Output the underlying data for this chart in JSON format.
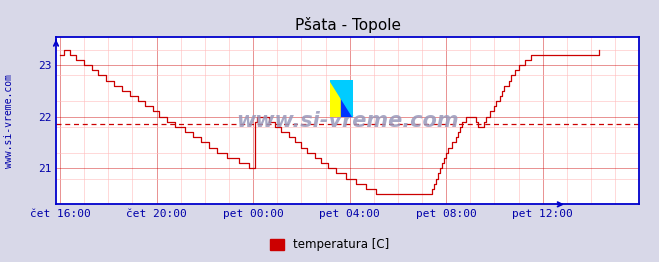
{
  "title": "Pšata - Topole",
  "ylabel_text": "www.si-vreme.com",
  "legend_label": "temperatura [C]",
  "legend_color": "#cc0000",
  "x_tick_labels": [
    "čet 16:00",
    "čet 20:00",
    "pet 00:00",
    "pet 04:00",
    "pet 08:00",
    "pet 12:00"
  ],
  "x_tick_positions": [
    0,
    48,
    96,
    144,
    192,
    240
  ],
  "y_ticks": [
    21,
    22,
    23
  ],
  "ylim": [
    20.3,
    23.55
  ],
  "xlim": [
    -2,
    252
  ],
  "avg_line_y": 21.85,
  "line_color": "#cc0000",
  "bg_color": "#d8d8e8",
  "plot_bg_color": "#ffffff",
  "grid_color_major": "#cc0000",
  "grid_color_minor": "#ffbbbb",
  "axis_color": "#0000cc",
  "title_color": "#000000",
  "watermark": "www.si-vreme.com",
  "watermark_color": "#9999bb",
  "num_points": 289,
  "temperature_data": [
    23.2,
    23.2,
    23.3,
    23.3,
    23.3,
    23.2,
    23.2,
    23.2,
    23.1,
    23.1,
    23.1,
    23.1,
    23.0,
    23.0,
    23.0,
    23.0,
    22.9,
    22.9,
    22.9,
    22.8,
    22.8,
    22.8,
    22.8,
    22.7,
    22.7,
    22.7,
    22.7,
    22.6,
    22.6,
    22.6,
    22.6,
    22.5,
    22.5,
    22.5,
    22.5,
    22.4,
    22.4,
    22.4,
    22.4,
    22.3,
    22.3,
    22.3,
    22.2,
    22.2,
    22.2,
    22.2,
    22.1,
    22.1,
    22.1,
    22.0,
    22.0,
    22.0,
    22.0,
    21.9,
    21.9,
    21.9,
    21.9,
    21.8,
    21.8,
    21.8,
    21.8,
    21.8,
    21.7,
    21.7,
    21.7,
    21.7,
    21.6,
    21.6,
    21.6,
    21.6,
    21.5,
    21.5,
    21.5,
    21.5,
    21.4,
    21.4,
    21.4,
    21.4,
    21.3,
    21.3,
    21.3,
    21.3,
    21.3,
    21.2,
    21.2,
    21.2,
    21.2,
    21.2,
    21.2,
    21.1,
    21.1,
    21.1,
    21.1,
    21.1,
    21.0,
    21.0,
    21.0,
    21.9,
    22.0,
    22.0,
    22.0,
    22.0,
    22.0,
    22.0,
    21.9,
    21.9,
    21.9,
    21.8,
    21.8,
    21.8,
    21.7,
    21.7,
    21.7,
    21.7,
    21.6,
    21.6,
    21.6,
    21.5,
    21.5,
    21.5,
    21.4,
    21.4,
    21.4,
    21.3,
    21.3,
    21.3,
    21.3,
    21.2,
    21.2,
    21.2,
    21.1,
    21.1,
    21.1,
    21.0,
    21.0,
    21.0,
    21.0,
    20.9,
    20.9,
    20.9,
    20.9,
    20.9,
    20.8,
    20.8,
    20.8,
    20.8,
    20.8,
    20.7,
    20.7,
    20.7,
    20.7,
    20.7,
    20.6,
    20.6,
    20.6,
    20.6,
    20.6,
    20.5,
    20.5,
    20.5,
    20.5,
    20.5,
    20.5,
    20.5,
    20.5,
    20.5,
    20.5,
    20.5,
    20.5,
    20.5,
    20.5,
    20.5,
    20.5,
    20.5,
    20.5,
    20.5,
    20.5,
    20.5,
    20.5,
    20.5,
    20.5,
    20.5,
    20.5,
    20.5,
    20.5,
    20.6,
    20.7,
    20.8,
    20.9,
    21.0,
    21.1,
    21.2,
    21.3,
    21.4,
    21.4,
    21.5,
    21.5,
    21.6,
    21.7,
    21.8,
    21.9,
    21.9,
    22.0,
    22.0,
    22.0,
    22.0,
    22.0,
    21.9,
    21.8,
    21.8,
    21.8,
    21.9,
    22.0,
    22.0,
    22.1,
    22.1,
    22.2,
    22.3,
    22.3,
    22.4,
    22.5,
    22.6,
    22.6,
    22.7,
    22.8,
    22.8,
    22.9,
    22.9,
    23.0,
    23.0,
    23.0,
    23.1,
    23.1,
    23.1,
    23.2,
    23.2,
    23.2,
    23.2,
    23.2,
    23.2,
    23.2,
    23.2,
    23.2,
    23.2,
    23.2,
    23.2,
    23.2,
    23.2,
    23.2,
    23.2,
    23.2,
    23.2,
    23.2,
    23.2,
    23.2,
    23.2,
    23.2,
    23.2,
    23.2,
    23.2,
    23.2,
    23.2,
    23.2,
    23.2,
    23.2,
    23.2,
    23.2,
    23.2,
    23.3
  ]
}
